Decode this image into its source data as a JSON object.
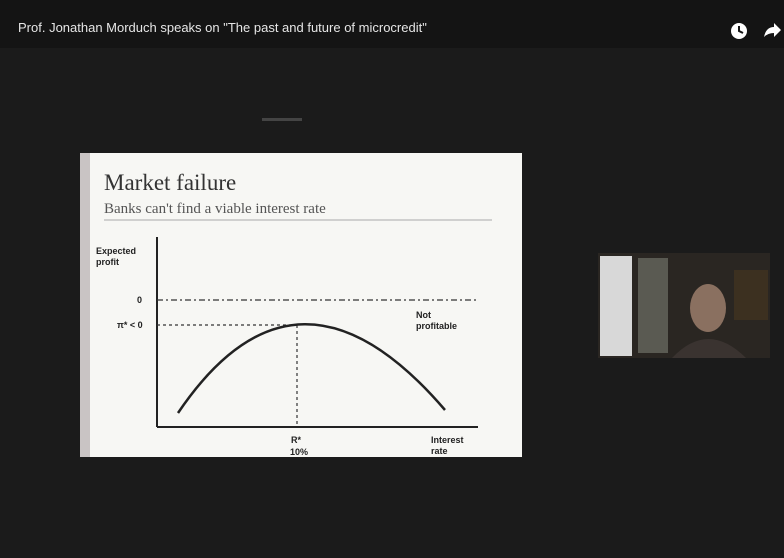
{
  "player": {
    "title": "Prof. Jonathan Morduch speaks on \"The past and future of microcredit\""
  },
  "slide": {
    "title": "Market failure",
    "subtitle": "Banks can't find a viable interest rate",
    "y_axis_label": "Expected profit",
    "zero_label": "0",
    "pi_label": "π* < 0",
    "annotation": "Not profitable",
    "r_label": "R*",
    "r_value": "10%",
    "x_axis_label": "Interest rate"
  }
}
